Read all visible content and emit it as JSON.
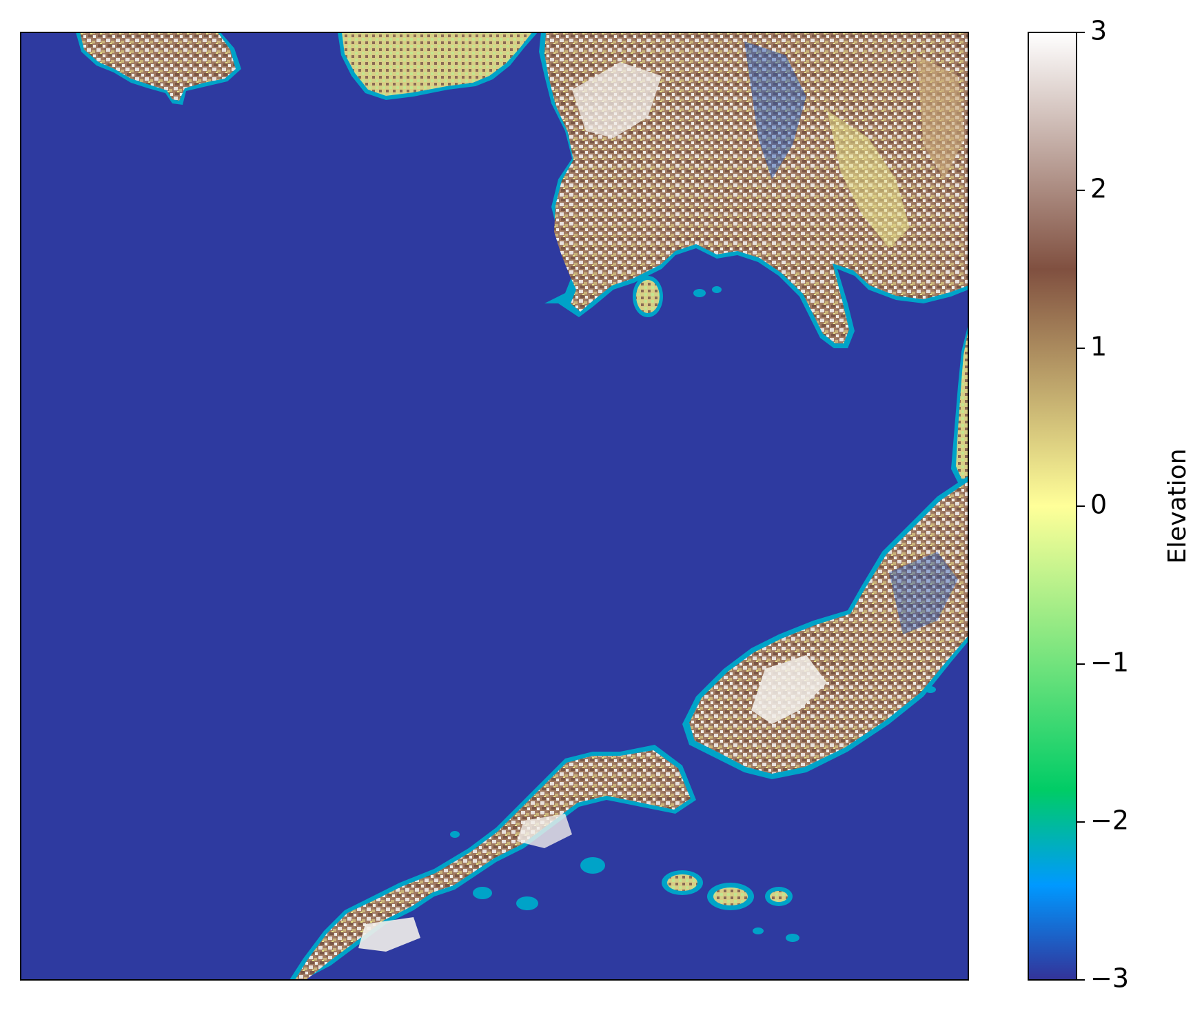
{
  "map": {
    "title": "",
    "ocean_color": "#2e3aa0",
    "colormap_stops": [
      {
        "value": -3,
        "color": "#333399"
      },
      {
        "value": -2.4,
        "color": "#0099ff"
      },
      {
        "value": -1.8,
        "color": "#00cc66"
      },
      {
        "value": 0,
        "color": "#ffff99"
      },
      {
        "value": 1.5,
        "color": "#805040"
      },
      {
        "value": 3,
        "color": "#ffffff"
      }
    ],
    "landmasses": [
      "northwest-island",
      "north-coast-peninsula",
      "northeast-mainland",
      "southeast-coast",
      "southern-peninsula-chain"
    ]
  },
  "colorbar": {
    "label": "Elevation",
    "min": -3,
    "max": 3,
    "ticks": [
      {
        "value": -3,
        "label": "−3"
      },
      {
        "value": -2,
        "label": "−2"
      },
      {
        "value": -1,
        "label": "−1"
      },
      {
        "value": 0,
        "label": "0"
      },
      {
        "value": 1,
        "label": "1"
      },
      {
        "value": 2,
        "label": "2"
      },
      {
        "value": 3,
        "label": "3"
      }
    ]
  }
}
